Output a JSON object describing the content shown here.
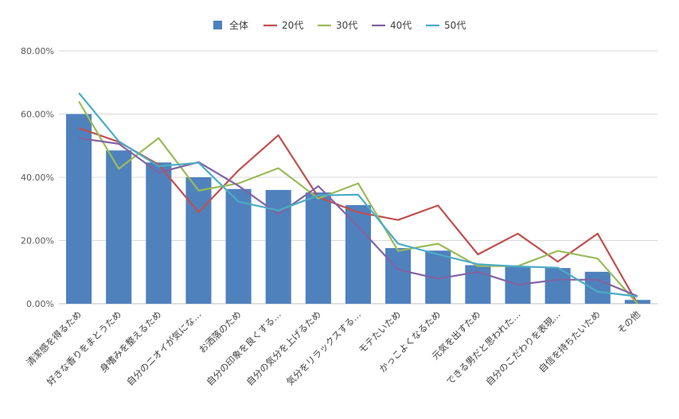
{
  "chart_data": {
    "type": "bar",
    "categories": [
      "清潔感を得るため",
      "好きな香りをまとうため",
      "身嗜みを整えるため",
      "自分のニオイが気にな…",
      "お洒落のため",
      "自分の印象を良くする…",
      "自分の気分を上げるため",
      "気分をリラックスする…",
      "モテたいため",
      "かっこよくなるため",
      "元気を出すため",
      "できる男だと思われた…",
      "自分のこだわりを表現…",
      "自信を持ちたいため",
      "その他"
    ],
    "ylim": [
      0,
      80
    ],
    "yticks": [
      0,
      20,
      40,
      60,
      80
    ],
    "ytick_labels": [
      "0.00%",
      "20.00%",
      "40.00%",
      "60.00%",
      "80.00%"
    ],
    "grid": true,
    "legend_position": "top",
    "series": [
      {
        "name": "全体",
        "kind": "bar",
        "color": "#4f81bd",
        "values": [
          60.0,
          48.5,
          44.7,
          40.0,
          36.3,
          36.0,
          35.2,
          31.2,
          17.6,
          16.8,
          12.2,
          11.8,
          11.3,
          10.1,
          1.2
        ]
      },
      {
        "name": "20代",
        "kind": "line",
        "color": "#c0504d",
        "values": [
          55.6,
          51.2,
          44.0,
          28.9,
          42.2,
          53.3,
          33.7,
          28.9,
          26.5,
          31.1,
          15.6,
          22.2,
          13.3,
          22.2,
          0.0
        ]
      },
      {
        "name": "30代",
        "kind": "line",
        "color": "#9bbb59",
        "values": [
          64.0,
          42.7,
          52.4,
          35.8,
          38.1,
          42.9,
          33.3,
          38.1,
          16.7,
          19.0,
          11.9,
          11.9,
          16.7,
          14.3,
          0.0
        ]
      },
      {
        "name": "40代",
        "kind": "line",
        "color": "#8064a2",
        "values": [
          52.4,
          50.6,
          41.5,
          44.8,
          37.3,
          28.3,
          37.2,
          24.4,
          10.8,
          7.9,
          10.1,
          6.0,
          7.6,
          7.6,
          2.4
        ]
      },
      {
        "name": "50代",
        "kind": "line",
        "color": "#4bacc6",
        "values": [
          66.7,
          51.4,
          43.5,
          44.6,
          32.3,
          29.5,
          34.3,
          34.5,
          19.0,
          15.6,
          12.5,
          11.8,
          11.4,
          3.8,
          2.3
        ]
      }
    ]
  }
}
